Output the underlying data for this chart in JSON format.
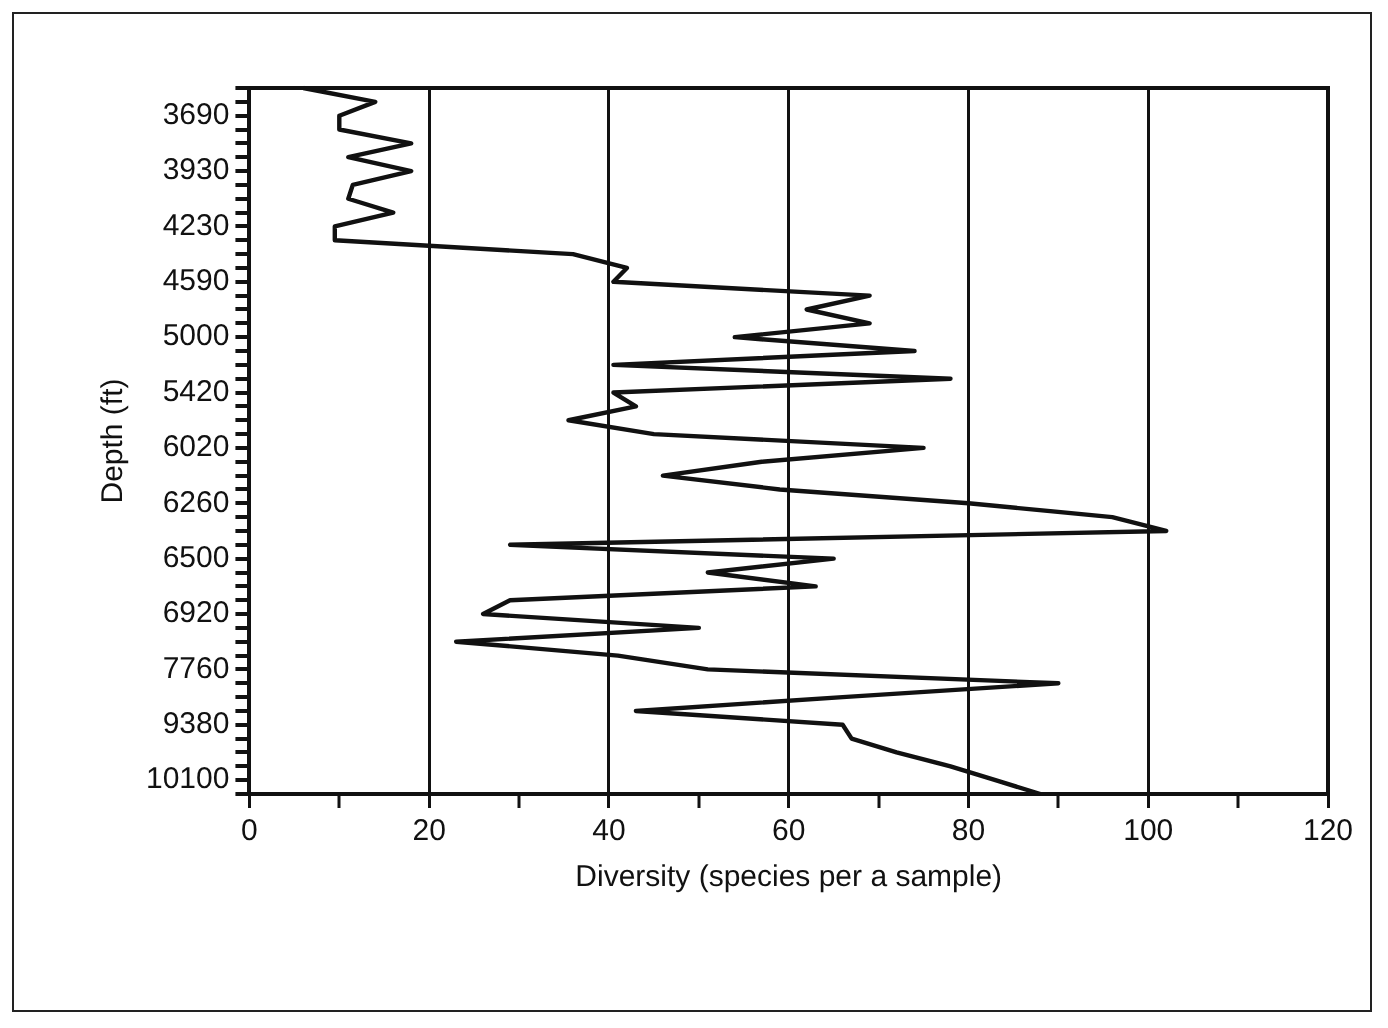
{
  "chart_data": {
    "type": "line",
    "orientation": "horizontal",
    "xlabel": "Diversity (species per a sample)",
    "ylabel": "Depth (ft)",
    "categories": [
      null,
      null,
      "3690",
      null,
      null,
      null,
      "3930",
      null,
      null,
      null,
      "4230",
      null,
      null,
      null,
      "4590",
      null,
      null,
      null,
      "5000",
      null,
      null,
      null,
      "5420",
      null,
      null,
      null,
      "6020",
      null,
      null,
      null,
      "6260",
      null,
      null,
      null,
      "6500",
      null,
      null,
      null,
      "6920",
      null,
      null,
      null,
      "7760",
      null,
      null,
      null,
      "9380",
      null,
      null,
      null,
      "10100",
      null
    ],
    "series": [
      {
        "color": "#111111",
        "values": [
          6,
          14,
          10,
          10,
          18,
          11,
          18,
          11.5,
          11,
          16,
          9.5,
          9.5,
          36,
          42,
          40.5,
          69,
          62,
          69,
          54,
          74,
          40.5,
          78,
          40.5,
          43,
          35.5,
          45,
          75,
          57,
          46,
          59,
          80,
          96,
          102,
          29,
          65,
          51,
          63,
          29,
          26,
          50,
          23,
          41,
          51,
          90,
          66,
          43,
          66,
          67,
          72,
          78,
          83,
          88
        ]
      }
    ],
    "xlim": [
      0,
      120
    ],
    "xticks": [
      0,
      {
        "value": 10,
        "label": null
      },
      20,
      {
        "value": 30,
        "label": null
      },
      40,
      {
        "value": 50,
        "label": null
      },
      60,
      {
        "value": 70,
        "label": null
      },
      80,
      {
        "value": 90,
        "label": null
      },
      100,
      {
        "value": 110,
        "label": null
      },
      120
    ],
    "grid": "x",
    "marker": "none",
    "line_style": "solid",
    "legend": false
  }
}
